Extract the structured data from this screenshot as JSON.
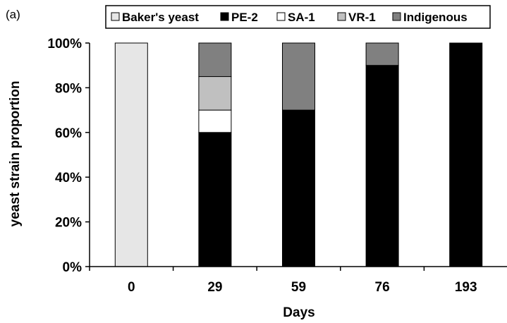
{
  "panel_label": "(a)",
  "chart_data": {
    "type": "bar",
    "stacked": true,
    "categories": [
      "0",
      "29",
      "59",
      "76",
      "193"
    ],
    "xlabel": "Days",
    "ylabel": "yeast strain proportion",
    "ylim": [
      0,
      100
    ],
    "yticks": [
      "0%",
      "20%",
      "40%",
      "60%",
      "80%",
      "100%"
    ],
    "legend_position": "top",
    "grid": false,
    "series": [
      {
        "name": "Baker's yeast",
        "color": "#e6e6e6",
        "values": [
          100,
          0,
          0,
          0,
          0
        ]
      },
      {
        "name": "PE-2",
        "color": "#000000",
        "values": [
          0,
          60,
          70,
          90,
          100
        ]
      },
      {
        "name": "SA-1",
        "color": "#ffffff",
        "values": [
          0,
          10,
          0,
          0,
          0
        ]
      },
      {
        "name": "VR-1",
        "color": "#c0c0c0",
        "values": [
          0,
          15,
          0,
          0,
          0
        ]
      },
      {
        "name": "Indigenous",
        "color": "#808080",
        "values": [
          0,
          15,
          30,
          10,
          0
        ]
      }
    ]
  }
}
